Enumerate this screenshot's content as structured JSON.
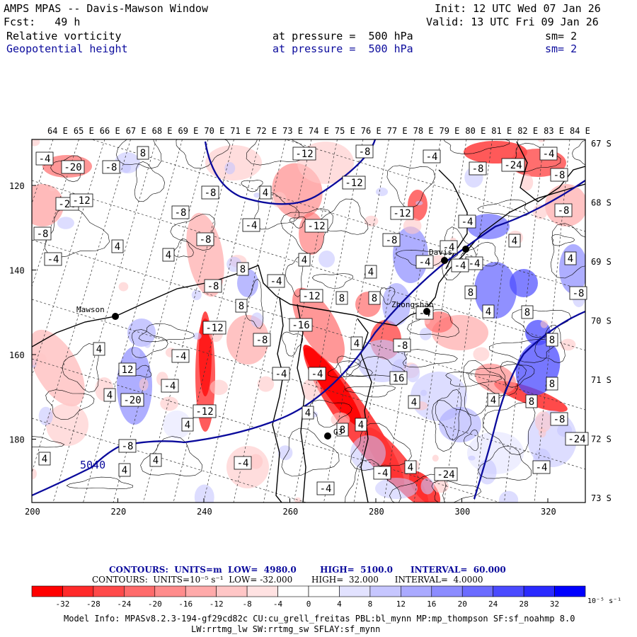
{
  "header": {
    "title": "AMPS MPAS -- Davis-Mawson Window",
    "init": "Init: 12 UTC Wed 07 Jan 26",
    "fcst": "Fcst:   49 h",
    "valid": "Valid: 13 UTC Fri 09 Jan 26",
    "field1": {
      "name": "Relative vorticity",
      "level": "at pressure =  500 hPa",
      "smooth": "sm= 2"
    },
    "field2": {
      "name": "Geopotential height",
      "level": "at pressure =  500 hPa",
      "smooth": "sm= 2"
    }
  },
  "top_lon_labels": [
    "64 E",
    "65 E",
    "66 E",
    "67 E",
    "68 E",
    "69 E",
    "70 E",
    "71 E",
    "72 E",
    "73 E",
    "74 E",
    "75 E",
    "76 E",
    "77 E",
    "78 E",
    "79 E",
    "80 E",
    "81 E",
    "82 E",
    "83 E",
    "84 E"
  ],
  "right_lat_labels": [
    "67 S",
    "68 S",
    "69 S",
    "70 S",
    "71 S",
    "72 S",
    "73 S"
  ],
  "left_y_labels": [
    "120",
    "140",
    "160",
    "180"
  ],
  "bottom_x_labels": [
    "200",
    "220",
    "240",
    "260",
    "280",
    "300",
    "320"
  ],
  "stations": {
    "mawson": "Mawson",
    "davis": "Davis",
    "zhongshan": "Zhongshan",
    "g3": "G3"
  },
  "height_contour_label": "5040",
  "contour_box_labels": [
    "-4",
    "-20",
    "-8",
    "8",
    "-12",
    "-8",
    "-4",
    "-8",
    "-4",
    "-24",
    "-20",
    "-12",
    "-8",
    "4",
    "-12",
    "-8",
    "-8",
    "-8",
    "-12",
    "-4",
    "-12",
    "-8",
    "-4",
    "-8",
    "4",
    "-8",
    "4",
    "4",
    "-4",
    "8",
    "4",
    "4",
    "-4",
    "4",
    "-4",
    "-4",
    "8",
    "8",
    "-8",
    "8",
    "-8",
    "-12",
    "-16",
    "4",
    "4",
    "8",
    "8",
    "-4",
    "-4",
    "8",
    "-12",
    "-8",
    "-4",
    "-8",
    "12",
    "4",
    "-4",
    "-4",
    "-20",
    "16",
    "4",
    "4",
    "8",
    "4",
    "4",
    "-12",
    "8",
    "-4",
    "-8",
    "-24",
    "4",
    "-8",
    "4",
    "4",
    "4",
    "-4",
    "-4",
    "-24",
    "-4",
    "4",
    "-4",
    "4",
    "-4",
    "8"
  ],
  "footer": {
    "contour1": "CONTOURS:  UNITS=m  LOW=  4980.0        HIGH=  5100.0      INTERVAL=  60.000",
    "contour2": "CONTOURS:  UNITS=10⁻⁵ s⁻¹  LOW= -32.000       HIGH=  32.000      INTERVAL=  4.0000",
    "model_info1": "Model Info: MPASv8.2.3-194-gf29cd82c CU:cu_grell_freitas PBL:bl_mynn MP:mp_thompson SF:sf_noahmp 8.0",
    "model_info2": "LW:rrtmg_lw SW:rrtmg_sw SFLAY:sf_mynn"
  },
  "colorbar": {
    "ticks": [
      "-32",
      "-28",
      "-24",
      "-20",
      "-16",
      "-12",
      "-8",
      "-4",
      "0",
      "4",
      "8",
      "12",
      "16",
      "20",
      "24",
      "28",
      "32"
    ],
    "unit": "10⁻⁵ s⁻¹",
    "colors": [
      "#ff0000",
      "#ff2a2a",
      "#ff4a4a",
      "#ff6b6b",
      "#ff8c8c",
      "#ffaaaa",
      "#ffc6c6",
      "#ffe2e2",
      "#ffffff",
      "#ffffff",
      "#e2e2ff",
      "#c6c6ff",
      "#aaaaff",
      "#8c8cff",
      "#6b6bff",
      "#4a4aff",
      "#2a2aff",
      "#0000ff"
    ]
  },
  "colors": {
    "height_contour": "#0a0a9c",
    "coastline": "#000000",
    "positive_vort": "#0000ff",
    "negative_vort": "#ff0000"
  }
}
